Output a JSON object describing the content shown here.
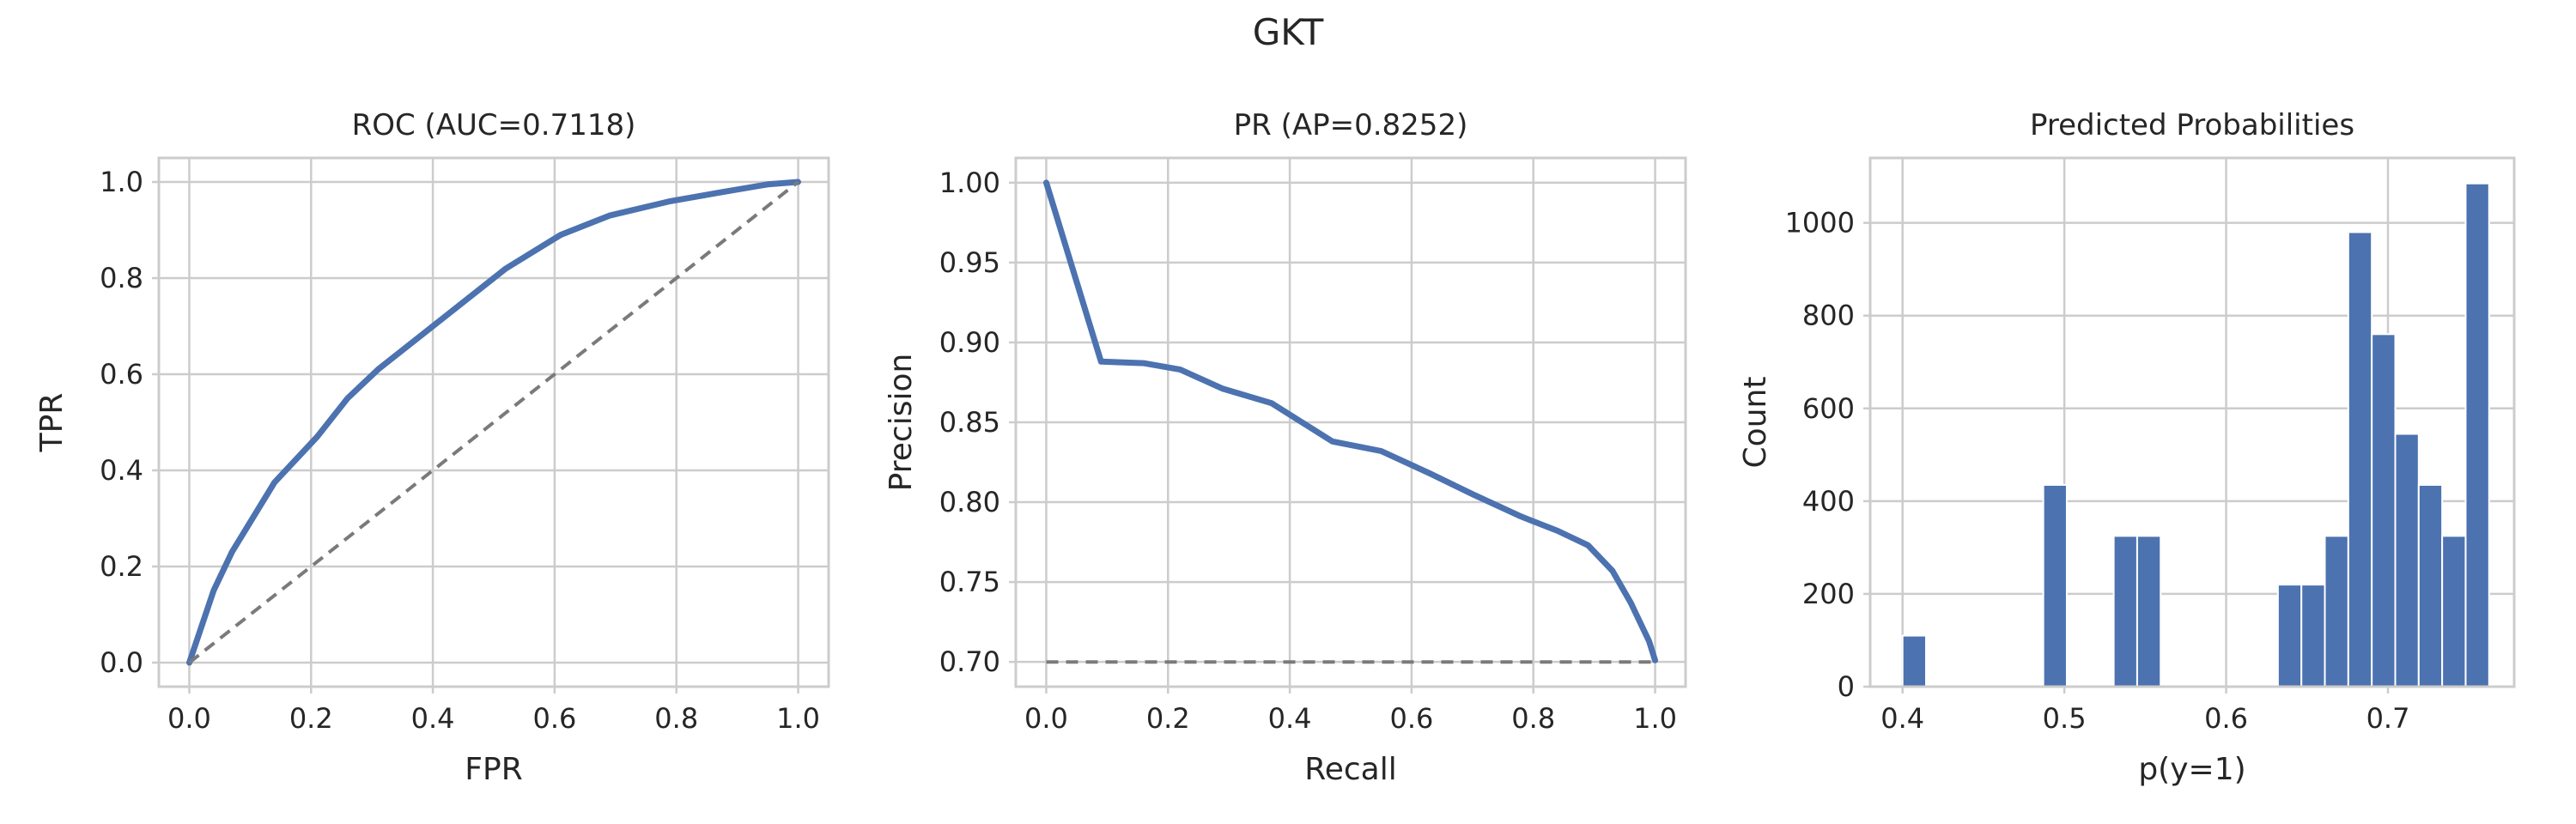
{
  "suptitle": "GKT",
  "colors": {
    "curve": "#4c72b0",
    "baseline": "#7a7a7a",
    "grid": "#cccccc"
  },
  "chart_data": [
    {
      "type": "line",
      "title": "ROC (AUC=0.7118)",
      "xlabel": "FPR",
      "ylabel": "TPR",
      "xlim": [
        -0.05,
        1.05
      ],
      "ylim": [
        -0.05,
        1.05
      ],
      "xticks": [
        0.0,
        0.2,
        0.4,
        0.6,
        0.8,
        1.0
      ],
      "yticks": [
        0.0,
        0.2,
        0.4,
        0.6,
        0.8,
        1.0
      ],
      "tick_decimals": 1,
      "grid": true,
      "series": [
        {
          "style": "solid",
          "x": [
            0.0,
            0.04,
            0.07,
            0.14,
            0.21,
            0.26,
            0.31,
            0.4,
            0.52,
            0.61,
            0.69,
            0.79,
            0.88,
            0.95,
            1.0
          ],
          "y": [
            0.0,
            0.15,
            0.23,
            0.375,
            0.47,
            0.55,
            0.61,
            0.7,
            0.82,
            0.89,
            0.93,
            0.96,
            0.98,
            0.995,
            1.0
          ]
        },
        {
          "style": "dashed",
          "x": [
            0.0,
            1.0
          ],
          "y": [
            0.0,
            1.0
          ]
        }
      ]
    },
    {
      "type": "line",
      "title": "PR (AP=0.8252)",
      "xlabel": "Recall",
      "ylabel": "Precision",
      "xlim": [
        -0.05,
        1.05
      ],
      "ylim": [
        0.6845,
        1.0155
      ],
      "xticks": [
        0.0,
        0.2,
        0.4,
        0.6,
        0.8,
        1.0
      ],
      "yticks": [
        0.7,
        0.75,
        0.8,
        0.85,
        0.9,
        0.95,
        1.0
      ],
      "xtick_decimals": 1,
      "ytick_decimals": 2,
      "grid": true,
      "series": [
        {
          "style": "solid",
          "x": [
            0.0,
            0.09,
            0.16,
            0.22,
            0.29,
            0.37,
            0.47,
            0.55,
            0.63,
            0.7,
            0.78,
            0.84,
            0.89,
            0.93,
            0.96,
            0.99,
            1.0
          ],
          "y": [
            1.0,
            0.888,
            0.887,
            0.883,
            0.871,
            0.862,
            0.838,
            0.832,
            0.818,
            0.805,
            0.791,
            0.782,
            0.773,
            0.757,
            0.737,
            0.713,
            0.701
          ]
        },
        {
          "style": "dashed",
          "x": [
            0.0,
            1.0
          ],
          "y": [
            0.7,
            0.7
          ]
        }
      ]
    },
    {
      "type": "bar",
      "title": "Predicted Probabilities",
      "xlabel": "p(y=1)",
      "ylabel": "Count",
      "xlim": [
        0.38,
        0.778
      ],
      "ylim": [
        0,
        1140
      ],
      "xticks": [
        0.4,
        0.5,
        0.6,
        0.7
      ],
      "yticks": [
        0,
        200,
        400,
        600,
        800,
        1000
      ],
      "xtick_decimals": 1,
      "ytick_decimals": 0,
      "grid": true,
      "bins": {
        "start": 0.4,
        "width": 0.0145
      },
      "values": [
        110,
        0,
        0,
        0,
        0,
        0,
        435,
        0,
        0,
        325,
        325,
        0,
        0,
        0,
        0,
        0,
        220,
        220,
        325,
        980,
        760,
        545,
        435,
        325,
        1085
      ]
    }
  ]
}
